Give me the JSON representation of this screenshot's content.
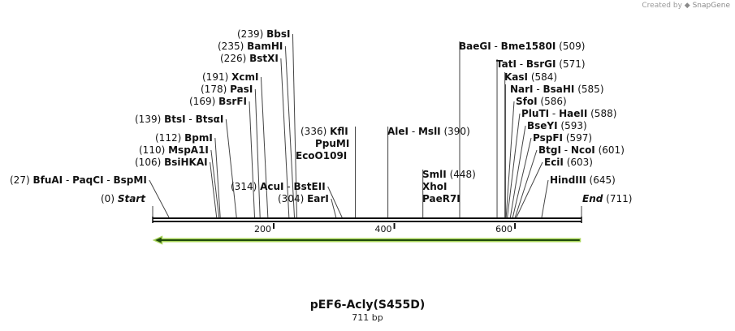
{
  "app": {
    "brand_prefix": "Created by",
    "brand_name": "SnapGene"
  },
  "map": {
    "name": "pEF6-Acly(S455D)",
    "length_label": "711 bp",
    "length_bp": 711
  },
  "ruler": {
    "ticks": [
      200,
      400,
      600
    ]
  },
  "ends": {
    "start": {
      "label": "Start",
      "pos_text": "(0)",
      "bp": 0
    },
    "end": {
      "label": "End",
      "pos_text": "(711)",
      "bp": 711
    }
  },
  "sites": [
    {
      "id": "bbsi",
      "pos_text": "(239)",
      "bp": 239,
      "names": [
        "BbsI"
      ]
    },
    {
      "id": "bamhi",
      "pos_text": "(235)",
      "bp": 235,
      "names": [
        "BamHI"
      ]
    },
    {
      "id": "bstxi",
      "pos_text": "(226)",
      "bp": 226,
      "names": [
        "BstXI"
      ]
    },
    {
      "id": "xcmi",
      "pos_text": "(191)",
      "bp": 191,
      "names": [
        "XcmI"
      ]
    },
    {
      "id": "pasi",
      "pos_text": "(178)",
      "bp": 178,
      "names": [
        "PasI"
      ]
    },
    {
      "id": "bsrfi",
      "pos_text": "(169)",
      "bp": 169,
      "names": [
        "BsrFI"
      ]
    },
    {
      "id": "btsi",
      "pos_text": "(139)",
      "bp": 139,
      "names": [
        "BtsI",
        "BtsαI"
      ]
    },
    {
      "id": "bpmi",
      "pos_text": "(112)",
      "bp": 112,
      "names": [
        "BpmI"
      ]
    },
    {
      "id": "mspa1i",
      "pos_text": "(110)",
      "bp": 110,
      "names": [
        "MspA1I"
      ]
    },
    {
      "id": "bsihkai",
      "pos_text": "(106)",
      "bp": 106,
      "names": [
        "BsiHKAI"
      ]
    },
    {
      "id": "bfuai",
      "pos_text": "(27)",
      "bp": 27,
      "names": [
        "BfuAI",
        "PaqCI",
        "BspMI"
      ]
    },
    {
      "id": "acui",
      "pos_text": "(314)",
      "bp": 314,
      "names": [
        "AcuI",
        "BstEII"
      ]
    },
    {
      "id": "eari",
      "pos_text": "(304)",
      "bp": 304,
      "names": [
        "EarI"
      ]
    },
    {
      "id": "kfli",
      "pos_text": "(336)",
      "bp": 336,
      "names": [
        "KflI",
        "PpuMI",
        "EcoO109I"
      ]
    },
    {
      "id": "alei",
      "pos_text": "(390)",
      "bp": 390,
      "names": [
        "AleI",
        "MslI"
      ]
    },
    {
      "id": "smli",
      "pos_text": "(448)",
      "bp": 448,
      "names": [
        "SmlI",
        "XhoI",
        "PaeR7I"
      ]
    },
    {
      "id": "baegi",
      "pos_text": "(509)",
      "bp": 509,
      "names": [
        "BaeGI",
        "Bme1580I"
      ]
    },
    {
      "id": "tati",
      "pos_text": "(571)",
      "bp": 571,
      "names": [
        "TatI",
        "BsrGI"
      ]
    },
    {
      "id": "kasi",
      "pos_text": "(584)",
      "bp": 584,
      "names": [
        "KasI"
      ]
    },
    {
      "id": "nari",
      "pos_text": "(585)",
      "bp": 585,
      "names": [
        "NarI",
        "BsaHI"
      ]
    },
    {
      "id": "sfoi",
      "pos_text": "(586)",
      "bp": 586,
      "names": [
        "SfoI"
      ]
    },
    {
      "id": "pluti",
      "pos_text": "(588)",
      "bp": 588,
      "names": [
        "PluTI",
        "HaeII"
      ]
    },
    {
      "id": "bseyi",
      "pos_text": "(593)",
      "bp": 593,
      "names": [
        "BseYI"
      ]
    },
    {
      "id": "pspfi",
      "pos_text": "(597)",
      "bp": 597,
      "names": [
        "PspFI"
      ]
    },
    {
      "id": "btgi",
      "pos_text": "(601)",
      "bp": 601,
      "names": [
        "BtgI",
        "NcoI"
      ]
    },
    {
      "id": "ecii",
      "pos_text": "(603)",
      "bp": 603,
      "names": [
        "EciI"
      ]
    },
    {
      "id": "hindiii",
      "pos_text": "(645)",
      "bp": 645,
      "names": [
        "HindIII"
      ]
    }
  ],
  "feature": {
    "direction": "reverse",
    "start_bp": 2,
    "end_bp": 709,
    "color": "#a8d45a"
  },
  "colors": {
    "backbone": "#111111",
    "line": "#444444",
    "text": "#111111"
  }
}
